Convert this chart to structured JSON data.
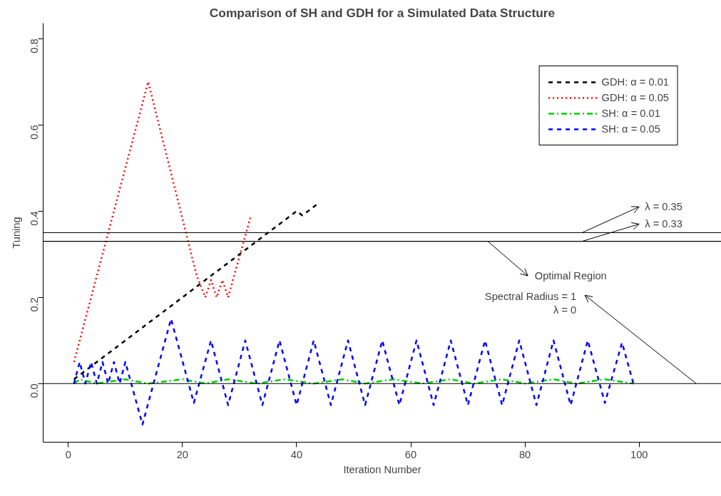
{
  "chart_data": {
    "type": "line",
    "title": "Comparison of SH and GDH for a Simulated Data Structure",
    "xlabel": "Iteration Number",
    "ylabel": "Tuning",
    "xlim": [
      -4.4,
      114.4
    ],
    "ylim": [
      -0.136,
      0.836
    ],
    "xticks": [
      0,
      20,
      40,
      60,
      80,
      100
    ],
    "yticks": [
      {
        "value": 0,
        "label": "0.0"
      },
      {
        "value": 0.2,
        "label": "0.2"
      },
      {
        "value": 0.4,
        "label": "0.4"
      },
      {
        "value": 0.6,
        "label": "0.6"
      },
      {
        "value": 0.8,
        "label": "0.8"
      }
    ],
    "grid": false,
    "legend": "top right",
    "series": [
      {
        "name": "GDH: α = 0.01",
        "color": "#000000",
        "line_style": "dashed",
        "x": [
          1,
          10,
          20,
          30,
          40,
          41,
          44
        ],
        "values": [
          0.01,
          0.1,
          0.2,
          0.3,
          0.4,
          0.39,
          0.42
        ]
      },
      {
        "name": "GDH: α = 0.05",
        "color": "#ff0000",
        "line_style": "dotted",
        "x": [
          1,
          14,
          22.5,
          24,
          25,
          26,
          27,
          28,
          32
        ],
        "values": [
          0.05,
          0.7,
          0.25,
          0.2,
          0.24,
          0.2,
          0.24,
          0.2,
          0.39
        ]
      },
      {
        "name": "SH: α = 0.01",
        "color": "#00cd00",
        "line_style": "dotdash",
        "x": [
          1,
          2,
          5,
          10,
          14,
          20,
          24,
          28,
          33,
          38,
          43,
          48,
          52,
          57,
          62,
          67,
          71,
          76,
          80,
          85,
          89,
          94,
          99
        ],
        "values": [
          0,
          0.01,
          0,
          0.01,
          0,
          0.01,
          0,
          0.01,
          0,
          0.01,
          0,
          0.01,
          0,
          0.01,
          0,
          0.01,
          0,
          0.01,
          0,
          0.01,
          0,
          0.01,
          0
        ]
      },
      {
        "name": "SH: α = 0.05",
        "color": "#0000ff",
        "line_style": "dashed",
        "x": [
          1,
          2,
          3,
          4,
          5,
          6,
          7,
          8,
          9,
          10,
          13,
          18,
          22,
          25,
          28,
          31,
          34,
          37,
          40,
          43,
          46,
          49,
          52,
          55,
          58,
          61,
          64,
          67,
          70,
          73,
          76,
          79,
          82,
          85,
          88,
          91,
          94,
          97,
          99
        ],
        "values": [
          0,
          0.05,
          0,
          0.05,
          0,
          0.05,
          0,
          0.05,
          0,
          0.05,
          -0.095,
          0.15,
          -0.045,
          0.1,
          -0.05,
          0.1,
          -0.05,
          0.1,
          -0.05,
          0.1,
          -0.05,
          0.1,
          -0.05,
          0.1,
          -0.05,
          0.1,
          -0.05,
          0.1,
          -0.05,
          0.1,
          -0.05,
          0.1,
          -0.05,
          0.1,
          -0.05,
          0.1,
          -0.045,
          0.095,
          0
        ]
      }
    ],
    "ref_lines": [
      {
        "axis": "y",
        "value": 0.35,
        "label": "λ = 0.35",
        "color": "#000000"
      },
      {
        "axis": "y",
        "value": 0.33,
        "label": "λ = 0.33",
        "color": "#000000"
      },
      {
        "axis": "y",
        "value": 0,
        "label": "Spectral Radius = 1\nλ = 0",
        "color": "#000000"
      }
    ],
    "annotations": [
      {
        "text": "Optimal Region",
        "x": 73.5,
        "y": 0.33
      }
    ]
  }
}
